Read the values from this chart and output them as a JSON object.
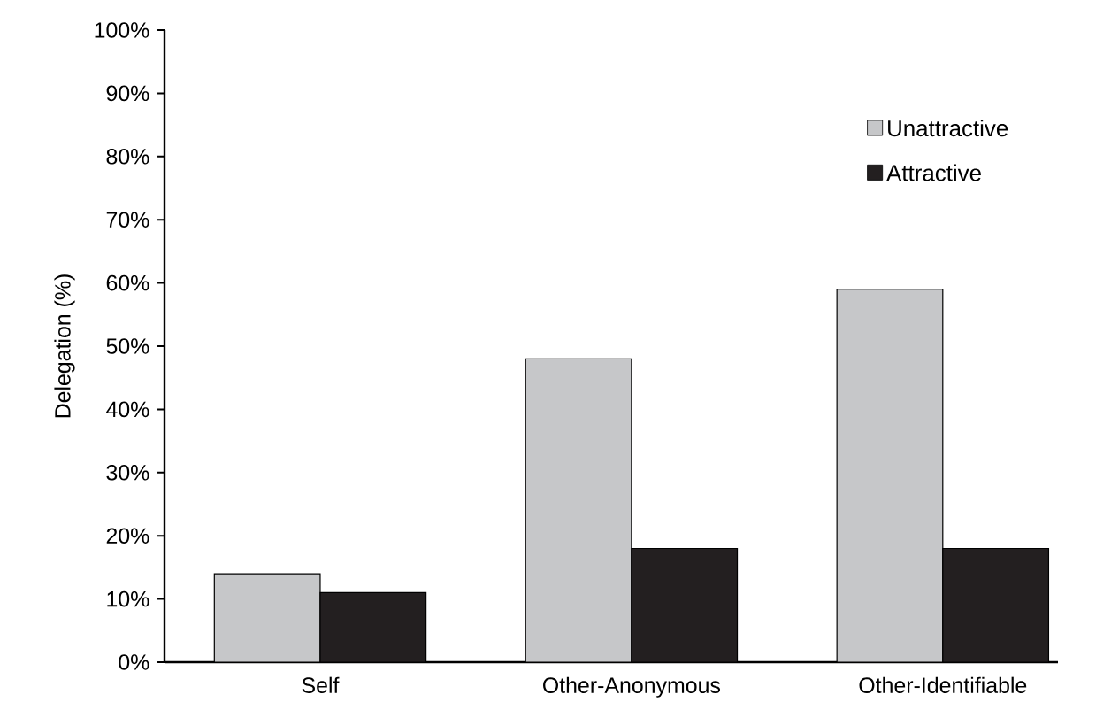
{
  "chart_data": {
    "type": "bar",
    "ylabel": "Delegation (%)",
    "categories": [
      "Self",
      "Other-Anonymous",
      "Other-Identifiable"
    ],
    "series": [
      {
        "name": "Unattractive",
        "color": "#c6c7c9",
        "values": [
          14,
          48,
          59
        ]
      },
      {
        "name": "Attractive",
        "color": "#231f20",
        "values": [
          11,
          18,
          18
        ]
      }
    ],
    "ylim": [
      0,
      100
    ],
    "yticks": [
      {
        "value": 0,
        "label": "0%"
      },
      {
        "value": 10,
        "label": "10%"
      },
      {
        "value": 20,
        "label": "20%"
      },
      {
        "value": 30,
        "label": "30%"
      },
      {
        "value": 40,
        "label": "40%"
      },
      {
        "value": 50,
        "label": "50%"
      },
      {
        "value": 60,
        "label": "60%"
      },
      {
        "value": 70,
        "label": "70%"
      },
      {
        "value": 80,
        "label": "80%"
      },
      {
        "value": 90,
        "label": "90%"
      },
      {
        "value": 100,
        "label": "100%"
      }
    ],
    "grid": false,
    "legend": "top right"
  }
}
